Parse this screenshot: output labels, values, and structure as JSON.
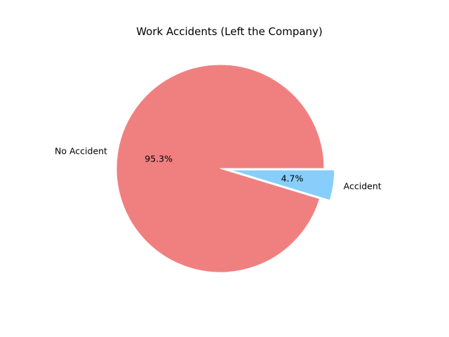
{
  "chart_data": {
    "type": "pie",
    "title": "Work Accidents (Left the Company)",
    "categories": [
      "No Accident",
      "Accident"
    ],
    "values": [
      95.3,
      4.7
    ],
    "value_labels": [
      "95.3%",
      "4.7%"
    ],
    "colors": [
      "#f08080",
      "#87cefa"
    ],
    "exploded": [
      false,
      true
    ],
    "legend": "none"
  }
}
